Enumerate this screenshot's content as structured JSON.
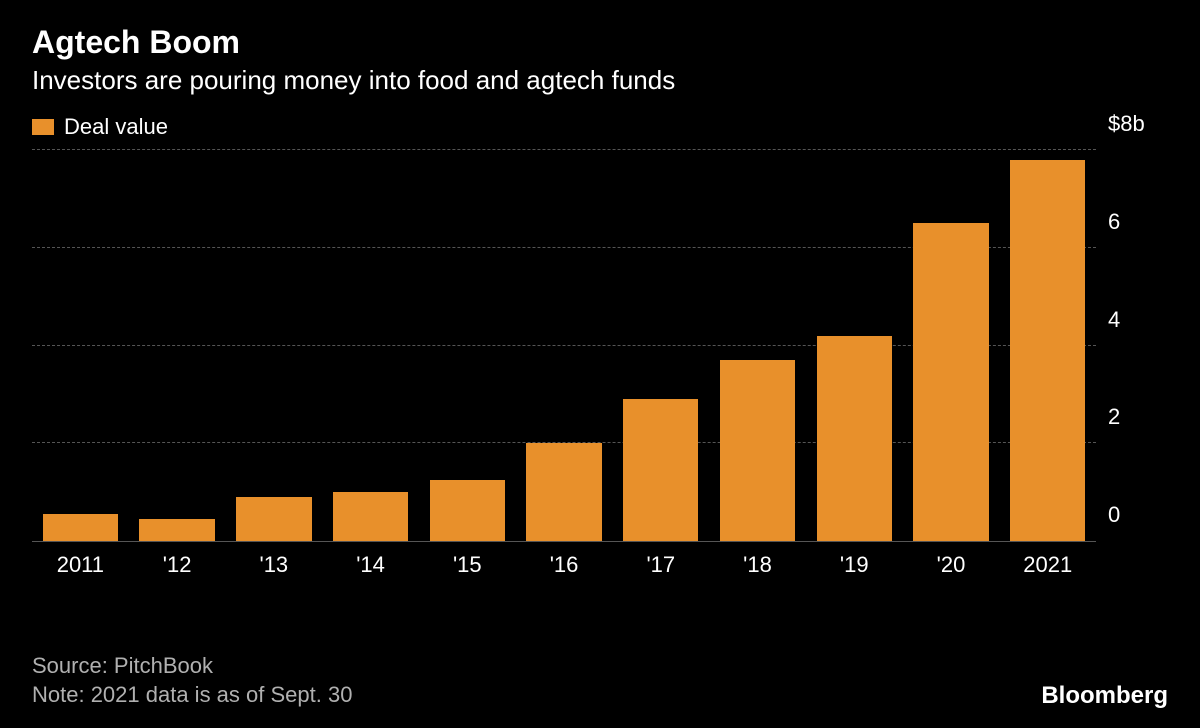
{
  "header": {
    "title": "Agtech Boom",
    "subtitle": "Investors are pouring money into food and agtech funds"
  },
  "legend": {
    "swatch_color": "#e8902b",
    "label": "Deal value"
  },
  "chart": {
    "type": "bar",
    "categories": [
      "2011",
      "'12",
      "'13",
      "'14",
      "'15",
      "'16",
      "'17",
      "'18",
      "'19",
      "'20",
      "2021"
    ],
    "values": [
      0.55,
      0.45,
      0.9,
      1.0,
      1.25,
      2.0,
      2.9,
      3.7,
      4.2,
      6.5,
      7.8
    ],
    "bar_color": "#e8902b",
    "ylim": [
      0,
      8
    ],
    "ytick_step": 2,
    "ytick_labels": [
      "0",
      "2",
      "4",
      "6",
      "$8b"
    ],
    "background_color": "#000000",
    "grid_color": "#555555",
    "grid_dash": true,
    "axis_color": "#555555",
    "bar_width": 0.78,
    "label_fontsize": 22,
    "title_fontsize": 32,
    "text_color": "#ffffff"
  },
  "footer": {
    "source": "Source: PitchBook",
    "note": "Note: 2021 data is as of Sept. 30",
    "brand": "Bloomberg",
    "muted_color": "#b0b0b0"
  }
}
